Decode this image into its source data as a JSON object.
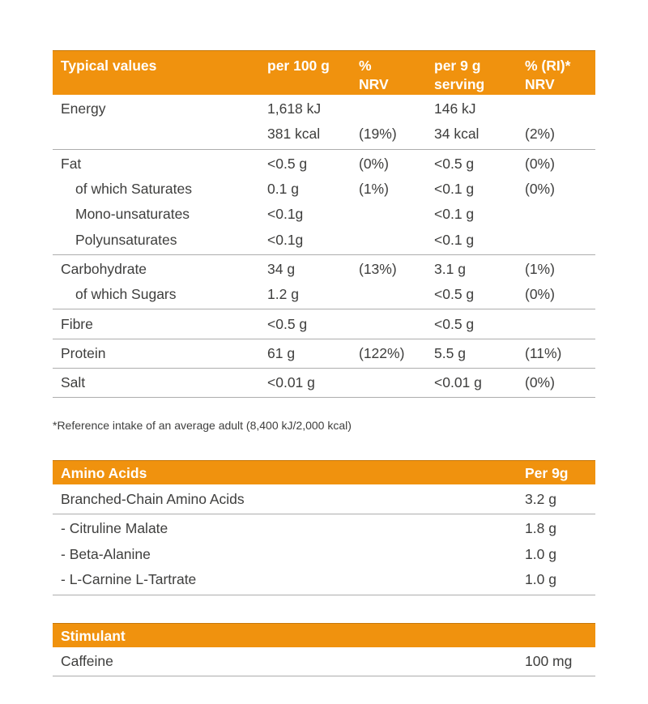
{
  "colors": {
    "accent": "#f0920e",
    "header_text": "#ffffff",
    "body_text": "#3e3e3d",
    "separator_line": "#adadad",
    "background": "#ffffff"
  },
  "main_table": {
    "headers": [
      "Typical values",
      "per 100 g",
      "%\nNRV",
      "per 9 g\nserving",
      "% (RI)*\nNRV"
    ],
    "groups": [
      {
        "rows": [
          {
            "label": "Energy",
            "indent": false,
            "per_100g": "1,618 kJ",
            "nrv": "",
            "per_9g": "146 kJ",
            "ri_nrv": ""
          },
          {
            "label": "",
            "indent": false,
            "per_100g": "381 kcal",
            "nrv": "(19%)",
            "per_9g": "34 kcal",
            "ri_nrv": "(2%)"
          }
        ]
      },
      {
        "rows": [
          {
            "label": "Fat",
            "indent": false,
            "per_100g": "<0.5 g",
            "nrv": "(0%)",
            "per_9g": "<0.5 g",
            "ri_nrv": "(0%)"
          },
          {
            "label": "of which Saturates",
            "indent": true,
            "per_100g": "0.1 g",
            "nrv": "(1%)",
            "per_9g": "<0.1 g",
            "ri_nrv": "(0%)"
          },
          {
            "label": "Mono-unsaturates",
            "indent": true,
            "per_100g": "<0.1g",
            "nrv": "",
            "per_9g": "<0.1 g",
            "ri_nrv": ""
          },
          {
            "label": "Polyunsaturates",
            "indent": true,
            "per_100g": "<0.1g",
            "nrv": "",
            "per_9g": "<0.1 g",
            "ri_nrv": ""
          }
        ]
      },
      {
        "rows": [
          {
            "label": "Carbohydrate",
            "indent": false,
            "per_100g": "34 g",
            "nrv": "(13%)",
            "per_9g": "3.1 g",
            "ri_nrv": "(1%)"
          },
          {
            "label": "of which Sugars",
            "indent": true,
            "per_100g": "1.2 g",
            "nrv": "",
            "per_9g": "<0.5 g",
            "ri_nrv": "(0%)"
          }
        ]
      },
      {
        "rows": [
          {
            "label": "Fibre",
            "indent": false,
            "per_100g": "<0.5 g",
            "nrv": "",
            "per_9g": "<0.5 g",
            "ri_nrv": ""
          }
        ]
      },
      {
        "rows": [
          {
            "label": "Protein",
            "indent": false,
            "per_100g": "61 g",
            "nrv": "(122%)",
            "per_9g": "5.5 g",
            "ri_nrv": "(11%)"
          }
        ]
      },
      {
        "rows": [
          {
            "label": "Salt",
            "indent": false,
            "per_100g": "<0.01 g",
            "nrv": "",
            "per_9g": "<0.01 g",
            "ri_nrv": "(0%)"
          }
        ]
      }
    ]
  },
  "footnote": "*Reference intake of an average adult (8,400 kJ/2,000 kcal)",
  "amino_table": {
    "header": {
      "title": "Amino Acids",
      "unit": "Per 9g"
    },
    "groups": [
      {
        "rows": [
          {
            "label": "Branched-Chain Amino Acids",
            "value": "3.2 g"
          }
        ]
      },
      {
        "rows": [
          {
            "label": "- Citruline Malate",
            "value": "1.8 g"
          },
          {
            "label": "- Beta-Alanine",
            "value": "1.0 g"
          },
          {
            "label": "- L-Carnine L-Tartrate",
            "value": "1.0 g"
          }
        ]
      }
    ]
  },
  "stimulant_table": {
    "header": {
      "title": "Stimulant",
      "unit": ""
    },
    "groups": [
      {
        "rows": [
          {
            "label": "Caffeine",
            "value": "100 mg"
          }
        ]
      }
    ]
  }
}
